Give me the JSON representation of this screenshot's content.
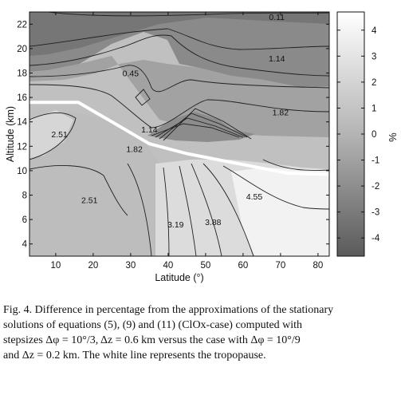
{
  "figure": {
    "chart_data": {
      "type": "heatmap",
      "xlabel": "Latitude (°)",
      "ylabel": "Altitude (km)",
      "xlim": [
        3,
        83
      ],
      "ylim": [
        3,
        23
      ],
      "x_ticks": [
        10,
        20,
        30,
        40,
        50,
        60,
        70,
        80
      ],
      "y_ticks": [
        4,
        6,
        8,
        10,
        12,
        14,
        16,
        18,
        20,
        22
      ],
      "colorbar": {
        "label": "%",
        "range": [
          -4.7,
          4.7
        ],
        "ticks": [
          4,
          3,
          2,
          1,
          0,
          -1,
          -2,
          -3,
          -4
        ],
        "colormap": "gray",
        "low_color": "#5a5a5a",
        "high_color": "#ffffff"
      },
      "contour_labels": [
        {
          "text": "0.11",
          "x": 69,
          "y": 22.6
        },
        {
          "text": "1.14",
          "x": 69,
          "y": 19.2
        },
        {
          "text": "0.45",
          "x": 30,
          "y": 18.0
        },
        {
          "text": "1.82",
          "x": 70,
          "y": 14.8
        },
        {
          "text": "1.14",
          "x": 35,
          "y": 13.4
        },
        {
          "text": "1.82",
          "x": 31,
          "y": 11.8
        },
        {
          "text": "2.51",
          "x": 11,
          "y": 13.0
        },
        {
          "text": "2.51",
          "x": 19,
          "y": 7.6
        },
        {
          "text": "3.19",
          "x": 42,
          "y": 5.6
        },
        {
          "text": "3.88",
          "x": 52,
          "y": 5.8
        },
        {
          "text": "4.55",
          "x": 63,
          "y": 7.9
        }
      ],
      "tropopause_line": {
        "name": "tropopause",
        "color": "#ffffff",
        "x": [
          3,
          16,
          25,
          35,
          45,
          55,
          65,
          72,
          83
        ],
        "y": [
          15.6,
          15.6,
          14.0,
          12.2,
          11.4,
          10.8,
          10.2,
          9.8,
          9.7
        ]
      }
    }
  },
  "caption": {
    "line1": "Fig. 4. Difference in percentage from the approximations of the stationary",
    "line2": "solutions of equations (5), (9) and (11) (ClOx-case) computed with",
    "line3": "stepsizes Δφ = 10°/3, Δz = 0.6 km versus   the case with Δφ = 10°/9",
    "line4": "and Δz = 0.2 km. The white line represents the tropopause."
  }
}
